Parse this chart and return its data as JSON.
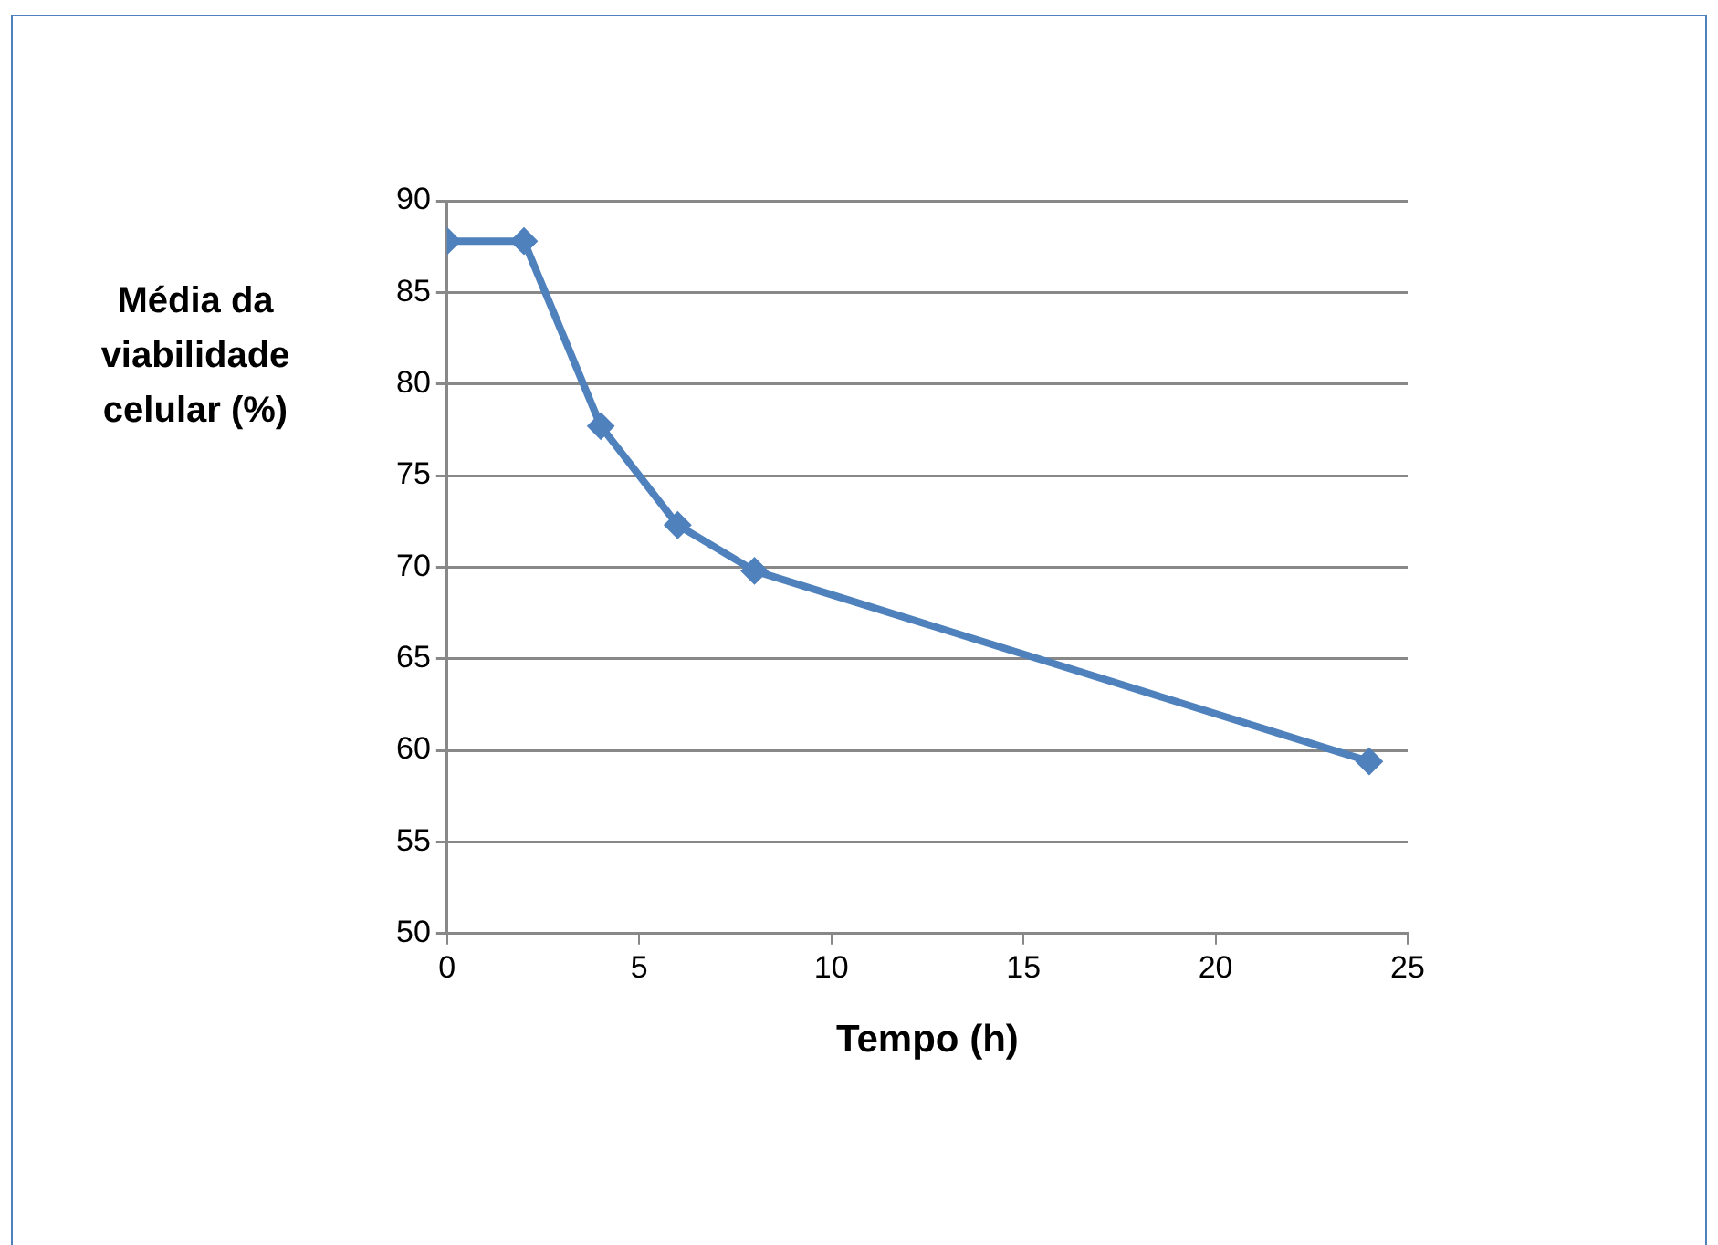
{
  "chart_data": {
    "type": "line",
    "xlabel": "Tempo (h)",
    "ylabel": "Média da viabilidade celular (%)",
    "x": [
      0,
      2,
      4,
      6,
      8,
      24
    ],
    "series": [
      {
        "color": "#4f81bd",
        "values": [
          87.8,
          87.8,
          77.7,
          72.3,
          69.8,
          59.4
        ]
      }
    ],
    "xlim": [
      0,
      25
    ],
    "xticks": [
      0,
      5,
      10,
      15,
      20,
      25
    ],
    "ylim": [
      50,
      90
    ],
    "yticks": [
      50,
      55,
      60,
      65,
      70,
      75,
      80,
      85,
      90
    ],
    "grid": "y",
    "legend": false,
    "marker": "diamond",
    "line_style": "solid"
  }
}
